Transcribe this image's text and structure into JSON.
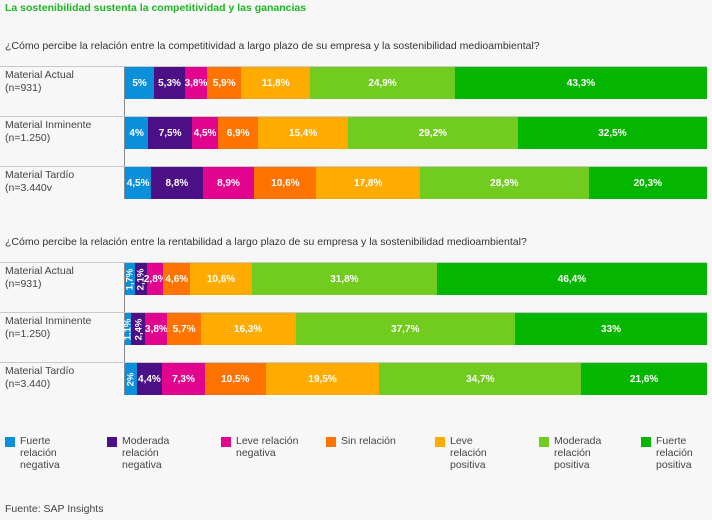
{
  "title": "La sostenibilidad sustenta la competitividad y las ganancias",
  "source": "Fuente: SAP Insights",
  "legend": [
    {
      "label": "Fuerte relación negativa",
      "lines": [
        "Fuerte",
        "relación",
        "negativa"
      ],
      "color": "#0a8fdb"
    },
    {
      "label": "Moderada relación negativa",
      "lines": [
        "Moderada",
        "relación",
        "negativa"
      ],
      "color": "#4b0f86"
    },
    {
      "label": "Leve relación negativa",
      "lines": [
        "Leve relación",
        "negativa"
      ],
      "color": "#e2048f"
    },
    {
      "label": "Sin relación",
      "lines": [
        "Sin relación"
      ],
      "color": "#ff7300"
    },
    {
      "label": "Leve relación positiva",
      "lines": [
        "Leve",
        "relación",
        "positiva"
      ],
      "color": "#ffab00"
    },
    {
      "label": "Moderada relación positiva",
      "lines": [
        "Moderada",
        "relación",
        "positiva"
      ],
      "color": "#72cb1f"
    },
    {
      "label": "Fuerte relación positiva",
      "lines": [
        "Fuerte",
        "relación",
        "positiva"
      ],
      "color": "#05b600"
    }
  ],
  "chart_data": [
    {
      "type": "bar",
      "orientation": "horizontal-stacked-100",
      "title": "¿Cómo percibe la relación entre la competitividad a largo plazo de su empresa y la sostenibilidad medioambiental?",
      "categories": [
        {
          "name": "Material Actual",
          "n": "(n=931)"
        },
        {
          "name": "Material Inminente",
          "n": "(n=1.250)"
        },
        {
          "name": "Material Tardío",
          "n": "(n=3.440v"
        }
      ],
      "series": [
        {
          "name": "Fuerte relación negativa",
          "values": [
            5,
            4,
            4.5
          ],
          "labels": [
            "5%",
            "4%",
            "4,5%"
          ]
        },
        {
          "name": "Moderada relación negativa",
          "values": [
            5.3,
            7.5,
            8.8
          ],
          "labels": [
            "5,3%",
            "7,5%",
            "8,8%"
          ]
        },
        {
          "name": "Leve relación negativa",
          "values": [
            3.8,
            4.5,
            8.9
          ],
          "labels": [
            "3,8%",
            "4,5%",
            "8,9%"
          ]
        },
        {
          "name": "Sin relación",
          "values": [
            5.9,
            6.9,
            10.6
          ],
          "labels": [
            "5,9%",
            "6,9%",
            "10,6%"
          ]
        },
        {
          "name": "Leve relación positiva",
          "values": [
            11.8,
            15.4,
            17.8
          ],
          "labels": [
            "11,8%",
            "15,4%",
            "17,8%"
          ]
        },
        {
          "name": "Moderada relación positiva",
          "values": [
            24.9,
            29.2,
            28.9
          ],
          "labels": [
            "24,9%",
            "29,2%",
            "28,9%"
          ]
        },
        {
          "name": "Fuerte relación positiva",
          "values": [
            43.3,
            32.5,
            20.3
          ],
          "labels": [
            "43,3%",
            "32,5%",
            "20,3%"
          ]
        }
      ],
      "xlim": [
        0,
        100
      ]
    },
    {
      "type": "bar",
      "orientation": "horizontal-stacked-100",
      "title": "¿Cómo percibe la relación entre la rentabilidad a largo plazo de su empresa y la sostenibilidad medioambiental?",
      "categories": [
        {
          "name": "Material Actual",
          "n": "(n=931)"
        },
        {
          "name": "Material Inminente",
          "n": "(n=1.250)"
        },
        {
          "name": "Material Tardío",
          "n": "(n=3.440)"
        }
      ],
      "series": [
        {
          "name": "Fuerte relación negativa",
          "values": [
            1.7,
            1.1,
            2
          ],
          "labels": [
            "1,7%",
            "1,1%",
            "2%"
          ]
        },
        {
          "name": "Moderada relación negativa",
          "values": [
            2.1,
            2.4,
            4.4
          ],
          "labels": [
            "2,1%",
            "2,4%",
            "4,4%"
          ]
        },
        {
          "name": "Leve relación negativa",
          "values": [
            2.8,
            3.8,
            7.3
          ],
          "labels": [
            "2,8%",
            "3,8%",
            "7,3%"
          ]
        },
        {
          "name": "Sin relación",
          "values": [
            4.6,
            5.7,
            10.5
          ],
          "labels": [
            "4,6%",
            "5,7%",
            "10,5%"
          ]
        },
        {
          "name": "Leve relación positiva",
          "values": [
            10.6,
            16.3,
            19.5
          ],
          "labels": [
            "10,6%",
            "16,3%",
            "19,5%"
          ]
        },
        {
          "name": "Moderada relación positiva",
          "values": [
            31.8,
            37.7,
            34.7
          ],
          "labels": [
            "31,8%",
            "37,7%",
            "34,7%"
          ]
        },
        {
          "name": "Fuerte relación positiva",
          "values": [
            46.4,
            33,
            21.6
          ],
          "labels": [
            "46,4%",
            "33%",
            "21,6%"
          ]
        }
      ],
      "xlim": [
        0,
        100
      ]
    }
  ]
}
